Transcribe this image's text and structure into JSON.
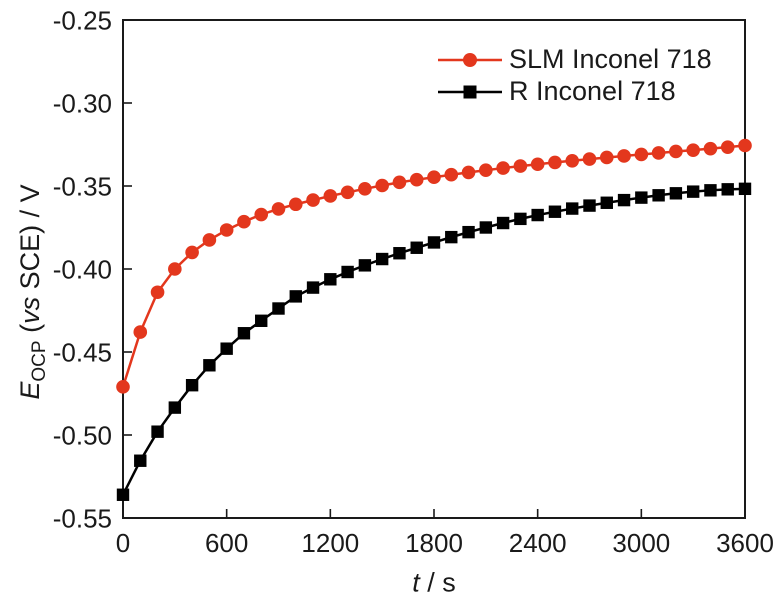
{
  "chart_data": {
    "type": "line",
    "title": "",
    "xlabel": "t / s",
    "ylabel": "E_OCP (vs SCE) / V",
    "xlabel_parts": {
      "symbol": "t",
      "rest": " / s"
    },
    "ylabel_parts": {
      "symbol": "E",
      "subscript": "OCP",
      "open": " (",
      "vs": "vs",
      "rest": " SCE) / V"
    },
    "xlim": [
      0,
      3600
    ],
    "ylim": [
      -0.55,
      -0.25
    ],
    "xticks": [
      0,
      600,
      1200,
      1800,
      2400,
      3000,
      3600
    ],
    "xtick_labels": [
      "0",
      "600",
      "1200",
      "1800",
      "2400",
      "3000",
      "3600"
    ],
    "yticks": [
      -0.25,
      -0.3,
      -0.35,
      -0.4,
      -0.45,
      -0.5,
      -0.55
    ],
    "ytick_labels": [
      "-0.25",
      "-0.30",
      "-0.35",
      "-0.40",
      "-0.45",
      "-0.50",
      "-0.55"
    ],
    "grid": false,
    "frame": true,
    "tick_direction": "in",
    "legend_position": "top-center-inside",
    "legend_frame": false,
    "x": [
      0,
      100,
      200,
      300,
      400,
      500,
      600,
      700,
      800,
      900,
      1000,
      1100,
      1200,
      1300,
      1400,
      1500,
      1600,
      1700,
      1800,
      1900,
      2000,
      2100,
      2200,
      2300,
      2400,
      2500,
      2600,
      2700,
      2800,
      2900,
      3000,
      3100,
      3200,
      3300,
      3400,
      3500,
      3600
    ],
    "series": [
      {
        "name": "SLM Inconel 718",
        "color": "#e3371d",
        "marker": "circle",
        "values": [
          -0.471,
          -0.438,
          -0.414,
          -0.4,
          -0.39,
          -0.3825,
          -0.3765,
          -0.3715,
          -0.3672,
          -0.3638,
          -0.361,
          -0.3585,
          -0.356,
          -0.3538,
          -0.3517,
          -0.3497,
          -0.3478,
          -0.3462,
          -0.3447,
          -0.3432,
          -0.3418,
          -0.3405,
          -0.3392,
          -0.338,
          -0.3369,
          -0.3358,
          -0.3348,
          -0.3338,
          -0.3328,
          -0.3319,
          -0.331,
          -0.3301,
          -0.3292,
          -0.3284,
          -0.3275,
          -0.3266,
          -0.3256
        ]
      },
      {
        "name": "R Inconel 718",
        "color": "#000000",
        "marker": "square",
        "values": [
          -0.536,
          -0.5155,
          -0.498,
          -0.4835,
          -0.47,
          -0.458,
          -0.448,
          -0.4387,
          -0.4312,
          -0.4238,
          -0.4165,
          -0.4112,
          -0.4062,
          -0.4018,
          -0.3978,
          -0.394,
          -0.3905,
          -0.3872,
          -0.384,
          -0.3808,
          -0.3778,
          -0.375,
          -0.3723,
          -0.3698,
          -0.3675,
          -0.3655,
          -0.3636,
          -0.3618,
          -0.3601,
          -0.3585,
          -0.357,
          -0.3556,
          -0.3544,
          -0.3534,
          -0.3526,
          -0.352,
          -0.3517
        ]
      }
    ]
  }
}
